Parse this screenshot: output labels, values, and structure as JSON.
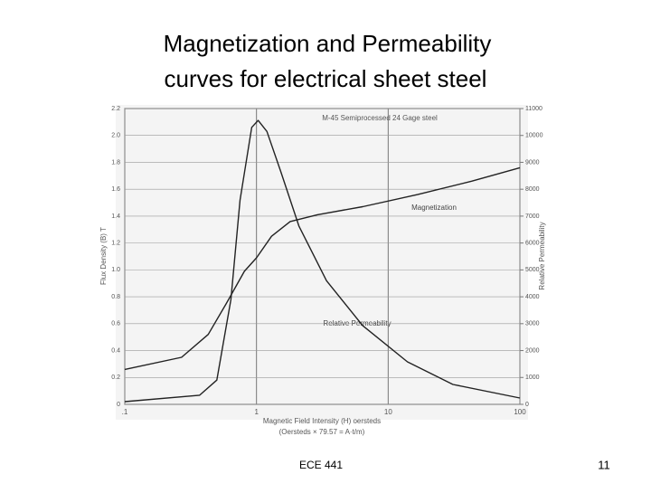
{
  "slide": {
    "title": [
      "Magnetization and Permeability",
      "curves for electrical sheet steel"
    ],
    "footer": "ECE 441",
    "page": "11"
  },
  "chart_data": {
    "type": "line",
    "title": "M-45 Semiprocessed 24 Gage steel",
    "x_label": "Magnetic Field Intensity (H) oersteds",
    "x_sublabel": "(Oersteds × 79.57 = A·t/m)",
    "y_label": "Flux Density (B) T",
    "y2_label": "Relative Permeability",
    "xscale": "log",
    "xlim": [
      0.1,
      100
    ],
    "xticks": [
      {
        "value": 0.1,
        "label": ".1"
      },
      1,
      10,
      100
    ],
    "ylim": [
      0,
      2.2
    ],
    "yticks": [
      0,
      0.2,
      0.4,
      0.6,
      0.8,
      {
        "value": 1,
        "label": "1.0"
      },
      1.2,
      1.4,
      1.6,
      1.8,
      {
        "value": 2,
        "label": "2.0"
      },
      2.2
    ],
    "y2lim": [
      0,
      11000
    ],
    "y2ticks": [
      0,
      1000,
      2000,
      3000,
      4000,
      5000,
      6000,
      7000,
      8000,
      9000,
      10000,
      11000
    ],
    "grid": true,
    "series": [
      {
        "name": "Magnetization",
        "color": "#222222",
        "axis": "y",
        "x": [
          0.1,
          0.27,
          0.43,
          0.59,
          0.81,
          1.0,
          1.3,
          1.8,
          2.9,
          6.4,
          16.7,
          43,
          100
        ],
        "values": [
          0.26,
          0.35,
          0.52,
          0.75,
          0.99,
          1.09,
          1.25,
          1.36,
          1.41,
          1.47,
          1.56,
          1.66,
          1.76
        ]
      },
      {
        "name": "Relative Permeability",
        "color": "#222222",
        "axis": "y2",
        "x": [
          0.1,
          0.37,
          0.5,
          0.64,
          0.75,
          0.92,
          1.03,
          1.2,
          1.53,
          2.1,
          3.4,
          6.4,
          14,
          31,
          100
        ],
        "values": [
          100,
          340,
          900,
          3900,
          7600,
          10300,
          10560,
          10150,
          8650,
          6630,
          4600,
          2930,
          1580,
          740,
          235
        ]
      }
    ]
  }
}
